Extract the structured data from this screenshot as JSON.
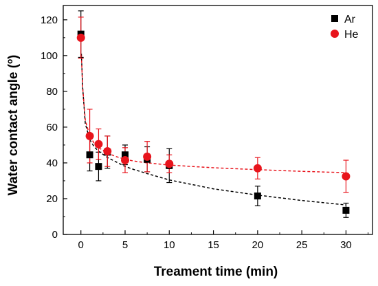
{
  "chart_data": {
    "type": "scatter",
    "xlabel": "Treament time (min)",
    "ylabel": "Water contact angle (º)",
    "xlim": [
      -2,
      33
    ],
    "ylim": [
      0,
      128
    ],
    "x_ticks": [
      0,
      5,
      10,
      15,
      20,
      25,
      30
    ],
    "y_ticks": [
      0,
      20,
      40,
      60,
      80,
      100,
      120
    ],
    "grid": false,
    "legend_position": "top-right",
    "series": [
      {
        "name": "Ar",
        "marker": "square",
        "color": "#000000",
        "x": [
          0,
          1,
          2,
          3,
          5,
          7.5,
          10,
          20,
          30
        ],
        "y": [
          112,
          44.5,
          38,
          46,
          44.5,
          42,
          38.5,
          21.5,
          13.5
        ],
        "yerr": [
          13,
          9,
          8,
          9,
          5.5,
          7,
          9.5,
          5.5,
          4
        ],
        "fit": {
          "style": "dashed",
          "x": [
            0.05,
            0.2,
            0.5,
            1,
            1.5,
            2,
            3,
            4,
            5,
            6,
            7.5,
            10,
            12.5,
            15,
            20,
            25,
            30
          ],
          "y": [
            101,
            82,
            62,
            53,
            49,
            46.5,
            43,
            40.5,
            38,
            36.3,
            34,
            30.5,
            28,
            25.5,
            22,
            19,
            16.5
          ]
        }
      },
      {
        "name": "He",
        "marker": "circle",
        "color": "#e8141c",
        "x": [
          0,
          1,
          2,
          3,
          5,
          7.5,
          10,
          20,
          30
        ],
        "y": [
          110,
          55,
          50.5,
          46.5,
          41.5,
          43.5,
          39.5,
          37,
          32.5
        ],
        "yerr": [
          11.5,
          15,
          8.5,
          8.5,
          7,
          8.5,
          5,
          6,
          9
        ],
        "fit": {
          "style": "dashed",
          "x": [
            0.05,
            0.2,
            0.5,
            1,
            1.5,
            2,
            3,
            4,
            5,
            6,
            7.5,
            10,
            12.5,
            15,
            20,
            25,
            30
          ],
          "y": [
            100,
            82,
            64,
            55,
            51,
            48.5,
            45.5,
            43.5,
            42,
            41,
            40,
            38.8,
            38,
            37.3,
            36.2,
            35.3,
            34.5
          ]
        }
      }
    ]
  }
}
